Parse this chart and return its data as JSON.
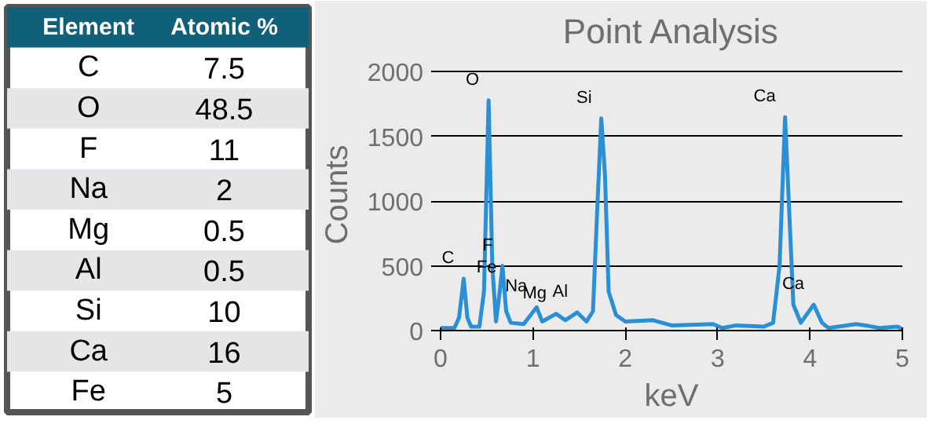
{
  "chart_data": [
    {
      "type": "other",
      "xlabel": "Element",
      "ylabel": "Atomic %",
      "categories": [
        "C",
        "O",
        "F",
        "Na",
        "Mg",
        "Al",
        "Si",
        "Ca",
        "Fe"
      ],
      "values": [
        7.5,
        48.5,
        11,
        2,
        0.5,
        0.5,
        10,
        16,
        5
      ],
      "data_labels": true
    },
    {
      "type": "line",
      "title": "Point Analysis",
      "xlabel": "keV",
      "ylabel": "Counts",
      "x": [
        0,
        0.15,
        0.2,
        0.25,
        0.29,
        0.33,
        0.42,
        0.47,
        0.52,
        0.56,
        0.6,
        0.64,
        0.67,
        0.71,
        0.76,
        0.9,
        1.04,
        1.1,
        1.25,
        1.35,
        1.48,
        1.58,
        1.65,
        1.7,
        1.74,
        1.78,
        1.82,
        1.9,
        2.0,
        2.3,
        2.5,
        2.95,
        3.05,
        3.2,
        3.5,
        3.6,
        3.67,
        3.73,
        3.77,
        3.82,
        3.9,
        4.04,
        4.13,
        4.2,
        4.5,
        4.6,
        4.75,
        4.95,
        5.0
      ],
      "series": [
        {
          "color": "#2a8fd4",
          "values": [
            20,
            20,
            100,
            400,
            100,
            30,
            30,
            300,
            1780,
            500,
            70,
            300,
            500,
            150,
            60,
            50,
            180,
            70,
            130,
            80,
            140,
            70,
            150,
            1000,
            1640,
            1200,
            300,
            120,
            70,
            80,
            40,
            50,
            20,
            40,
            30,
            60,
            500,
            1650,
            1000,
            200,
            60,
            200,
            60,
            20,
            50,
            40,
            20,
            30,
            10
          ]
        }
      ],
      "xlim": [
        0,
        5
      ],
      "ylim": [
        0,
        2100
      ],
      "xticks": [
        0,
        1,
        2,
        3,
        4,
        5
      ],
      "yticks": [
        0,
        500,
        1000,
        1500,
        2000
      ],
      "grid": "y",
      "line_style": "solid",
      "marker": "none",
      "annotations": [
        {
          "text": "C",
          "x": 0.25,
          "y": 400
        },
        {
          "text": "O",
          "x": 0.52,
          "y": 1780
        },
        {
          "text": "F",
          "x": 0.67,
          "y": 500
        },
        {
          "text": "Fe",
          "x": 0.71,
          "y": 330
        },
        {
          "text": "Na",
          "x": 1.04,
          "y": 180
        },
        {
          "text": "Mg",
          "x": 1.25,
          "y": 125
        },
        {
          "text": "Al",
          "x": 1.48,
          "y": 140
        },
        {
          "text": "Si",
          "x": 1.74,
          "y": 1640
        },
        {
          "text": "Ca",
          "x": 3.73,
          "y": 1650
        },
        {
          "text": "Ca",
          "x": 4.04,
          "y": 200
        }
      ]
    }
  ]
}
